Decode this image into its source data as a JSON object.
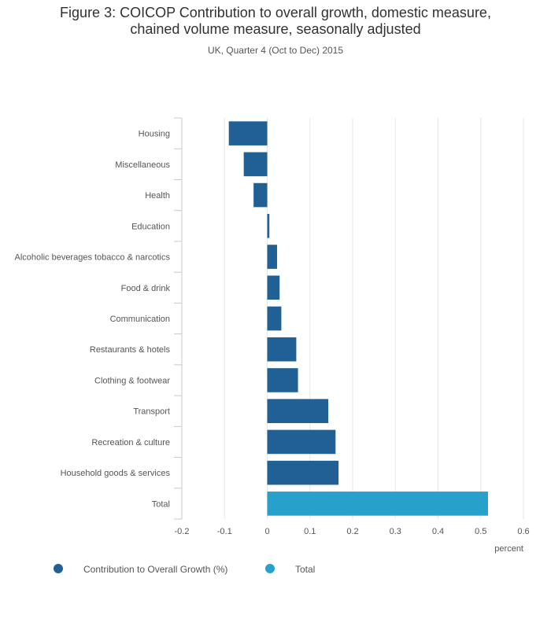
{
  "chart_data": {
    "type": "bar",
    "orientation": "horizontal",
    "title_line1": "Figure 3: COICOP Contribution to overall growth, domestic measure,",
    "title_line2": "chained volume measure, seasonally adjusted",
    "subtitle": "UK, Quarter 4 (Oct to Dec) 2015",
    "xlabel": "percent",
    "ylabel": "",
    "xlim": [
      -0.2,
      0.6
    ],
    "xticks": [
      -0.2,
      -0.1,
      0,
      0.1,
      0.2,
      0.3,
      0.4,
      0.5,
      0.6
    ],
    "xtick_labels": [
      "-0.2",
      "-0.1",
      "0",
      "0.1",
      "0.2",
      "0.3",
      "0.4",
      "0.5",
      "0.6"
    ],
    "grid": true,
    "legend_position": "bottom-left",
    "categories": [
      "Housing",
      "Miscellaneous",
      "Health",
      "Education",
      "Alcoholic beverages tobacco & narcotics",
      "Food & drink",
      "Communication",
      "Restaurants & hotels",
      "Clothing & footwear",
      "Transport",
      "Recreation & culture",
      "Household goods & services",
      "Total"
    ],
    "values": [
      -0.09,
      -0.055,
      -0.032,
      0.005,
      0.023,
      0.029,
      0.033,
      0.068,
      0.072,
      0.143,
      0.16,
      0.167,
      0.517
    ],
    "series": [
      {
        "name": "Contribution to Overall Growth (%)",
        "color": "#206095"
      },
      {
        "name": "Total",
        "color": "#27a0cc"
      }
    ],
    "bar_series": [
      0,
      0,
      0,
      0,
      0,
      0,
      0,
      0,
      0,
      0,
      0,
      0,
      1
    ]
  }
}
